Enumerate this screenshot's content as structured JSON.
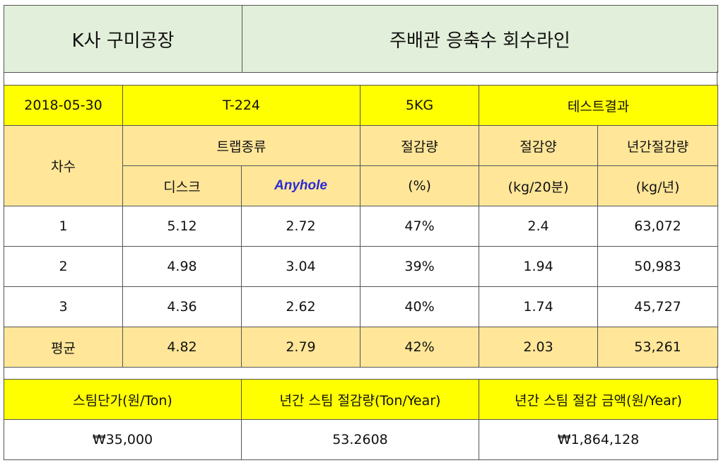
{
  "header": {
    "company": "K사 구미공장",
    "line": "주배관 응축수 회수라인"
  },
  "info": {
    "date": "2018-05-30",
    "model": "T-224",
    "spec": "5KG",
    "label": "테스트결과"
  },
  "columns": {
    "round": "차수",
    "trap_type": "트랩종류",
    "disc": "디스크",
    "anyhole": "Anyhole",
    "reduction_rate": "절감량",
    "reduction_rate_unit": "(%)",
    "reduction_amount": "절감양",
    "reduction_amount_unit": "(kg/20분)",
    "annual_reduction": "년간절감량",
    "annual_reduction_unit": "(kg/년)"
  },
  "rows": [
    {
      "round": "1",
      "disc": "5.12",
      "anyhole": "2.72",
      "rate": "47%",
      "amount": "2.4",
      "annual": "63,072"
    },
    {
      "round": "2",
      "disc": "4.98",
      "anyhole": "3.04",
      "rate": "39%",
      "amount": "1.94",
      "annual": "50,983"
    },
    {
      "round": "3",
      "disc": "4.36",
      "anyhole": "2.62",
      "rate": "40%",
      "amount": "1.74",
      "annual": "45,727"
    }
  ],
  "average": {
    "round": "평균",
    "disc": "4.82",
    "anyhole": "2.79",
    "rate": "42%",
    "amount": "2.03",
    "annual": "53,261"
  },
  "cost": {
    "unit_price_label": "스팀단가(원/Ton)",
    "annual_steam_label": "년간 스팀 절감량(Ton/Year)",
    "annual_amount_label": "년간 스팀 절감 금액(원/Year)",
    "unit_price": "₩35,000",
    "annual_steam": "53.2608",
    "annual_amount": "₩1,864,128"
  }
}
